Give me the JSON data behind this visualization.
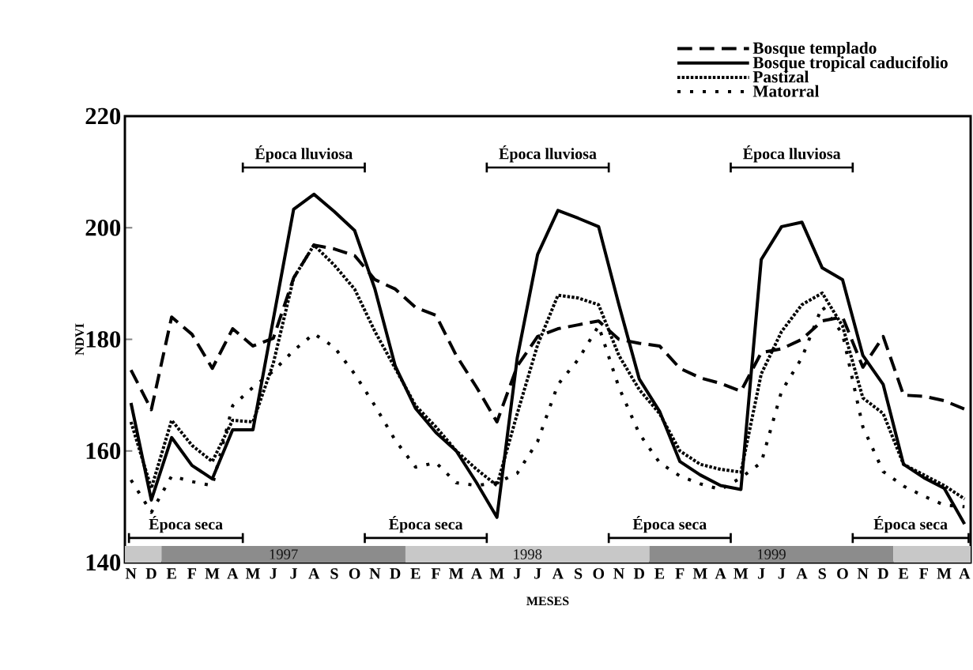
{
  "chart_data": {
    "type": "line",
    "xlabel": "MESES",
    "ylabel": "NDVI",
    "categories": [
      "N",
      "D",
      "E",
      "F",
      "M",
      "A",
      "M",
      "J",
      "J",
      "A",
      "S",
      "O",
      "N",
      "D",
      "E",
      "F",
      "M",
      "A",
      "M",
      "J",
      "J",
      "A",
      "S",
      "O",
      "N",
      "D",
      "E",
      "F",
      "M",
      "A",
      "M",
      "J",
      "J",
      "A",
      "S",
      "O",
      "N",
      "D",
      "E",
      "F",
      "M",
      "A"
    ],
    "ylim": [
      140,
      220
    ],
    "yticks": [
      140,
      160,
      180,
      200,
      220
    ],
    "legend": "top right",
    "series": [
      {
        "name": "Bosque templado",
        "color": "#000000",
        "line_style": "dashed",
        "values": [
          174.5,
          167.4,
          184,
          180.9,
          174.8,
          181.9,
          178.8,
          180.2,
          191,
          196.9,
          196.2,
          195,
          190.7,
          189,
          185.7,
          184.3,
          177.1,
          171.4,
          165.2,
          175.2,
          180.5,
          181.9,
          182.6,
          183.3,
          180,
          179.3,
          178.8,
          174.8,
          173.1,
          172.1,
          170.7,
          177.6,
          178.3,
          180,
          183.3,
          184,
          175,
          180.5,
          170,
          169.8,
          169,
          167.5
        ]
      },
      {
        "name": "Bosque tropical caducifolio",
        "color": "#000000",
        "line_style": "solid",
        "values": [
          168.6,
          151.2,
          162.4,
          157.4,
          155,
          163.8,
          163.8,
          183.6,
          203.3,
          206,
          202.9,
          199.5,
          189,
          175.2,
          167.6,
          163.3,
          160,
          154.3,
          148.1,
          176.7,
          195.2,
          203.1,
          201.7,
          200.2,
          186.2,
          172.9,
          167.1,
          158.1,
          155.7,
          153.8,
          153.1,
          194.3,
          200.2,
          201,
          192.8,
          190.7,
          177.1,
          171.9,
          157.6,
          155.2,
          153.3,
          146.9
        ]
      },
      {
        "name": "Pastizal",
        "color": "#000000",
        "line_style": "dotted",
        "values": [
          165.2,
          153.3,
          165.5,
          161,
          158.1,
          165.5,
          165.2,
          175.7,
          191,
          196.9,
          193.3,
          189,
          181.4,
          174.8,
          168.1,
          164.3,
          160,
          156.7,
          153.8,
          166.7,
          179,
          187.9,
          187.4,
          186.2,
          177.1,
          171,
          166.7,
          160,
          157.6,
          156.7,
          156.2,
          173.8,
          181.4,
          186.2,
          188.3,
          182.4,
          169.5,
          166.7,
          157.6,
          155.7,
          153.8,
          151.4
        ]
      },
      {
        "name": "Matorral",
        "color": "#000000",
        "line_style": "dotted",
        "values": [
          154.8,
          149,
          155.5,
          154.5,
          153.8,
          168.1,
          171.4,
          174.3,
          178,
          181,
          178.6,
          173.8,
          168.1,
          161.9,
          157.1,
          157.9,
          154.3,
          153.8,
          154.3,
          156,
          161.7,
          171.9,
          176.4,
          182.4,
          171.4,
          163.1,
          157.9,
          155.5,
          154.1,
          153.1,
          155.2,
          157.9,
          170.7,
          176.7,
          185.9,
          181,
          164.3,
          156.3,
          153.7,
          151.9,
          150.3,
          150
        ]
      }
    ],
    "annotations": [
      "1997",
      "1998",
      "1999",
      "Época seca",
      "Época lluviosa",
      "Época seca",
      "Época lluviosa",
      "Época seca",
      "Época lluviosa",
      "Época seca"
    ]
  }
}
